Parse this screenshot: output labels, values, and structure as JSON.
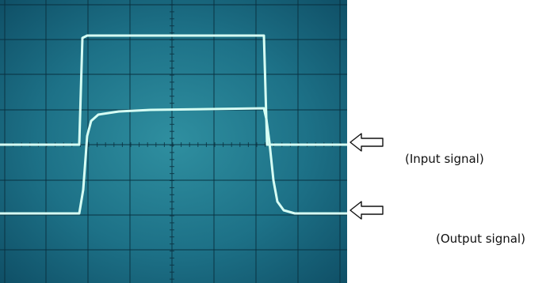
{
  "figure": {
    "input_label": "(Input signal)",
    "output_label": "(Output signal)"
  },
  "scope_style": {
    "trace_color": "#d7fff4",
    "graticule_color": "#0a2f3e",
    "minor_tick_color": "#0a2f3e"
  },
  "icons": {
    "input_pointer": "left-arrow-icon",
    "output_pointer": "left-arrow-icon"
  }
}
